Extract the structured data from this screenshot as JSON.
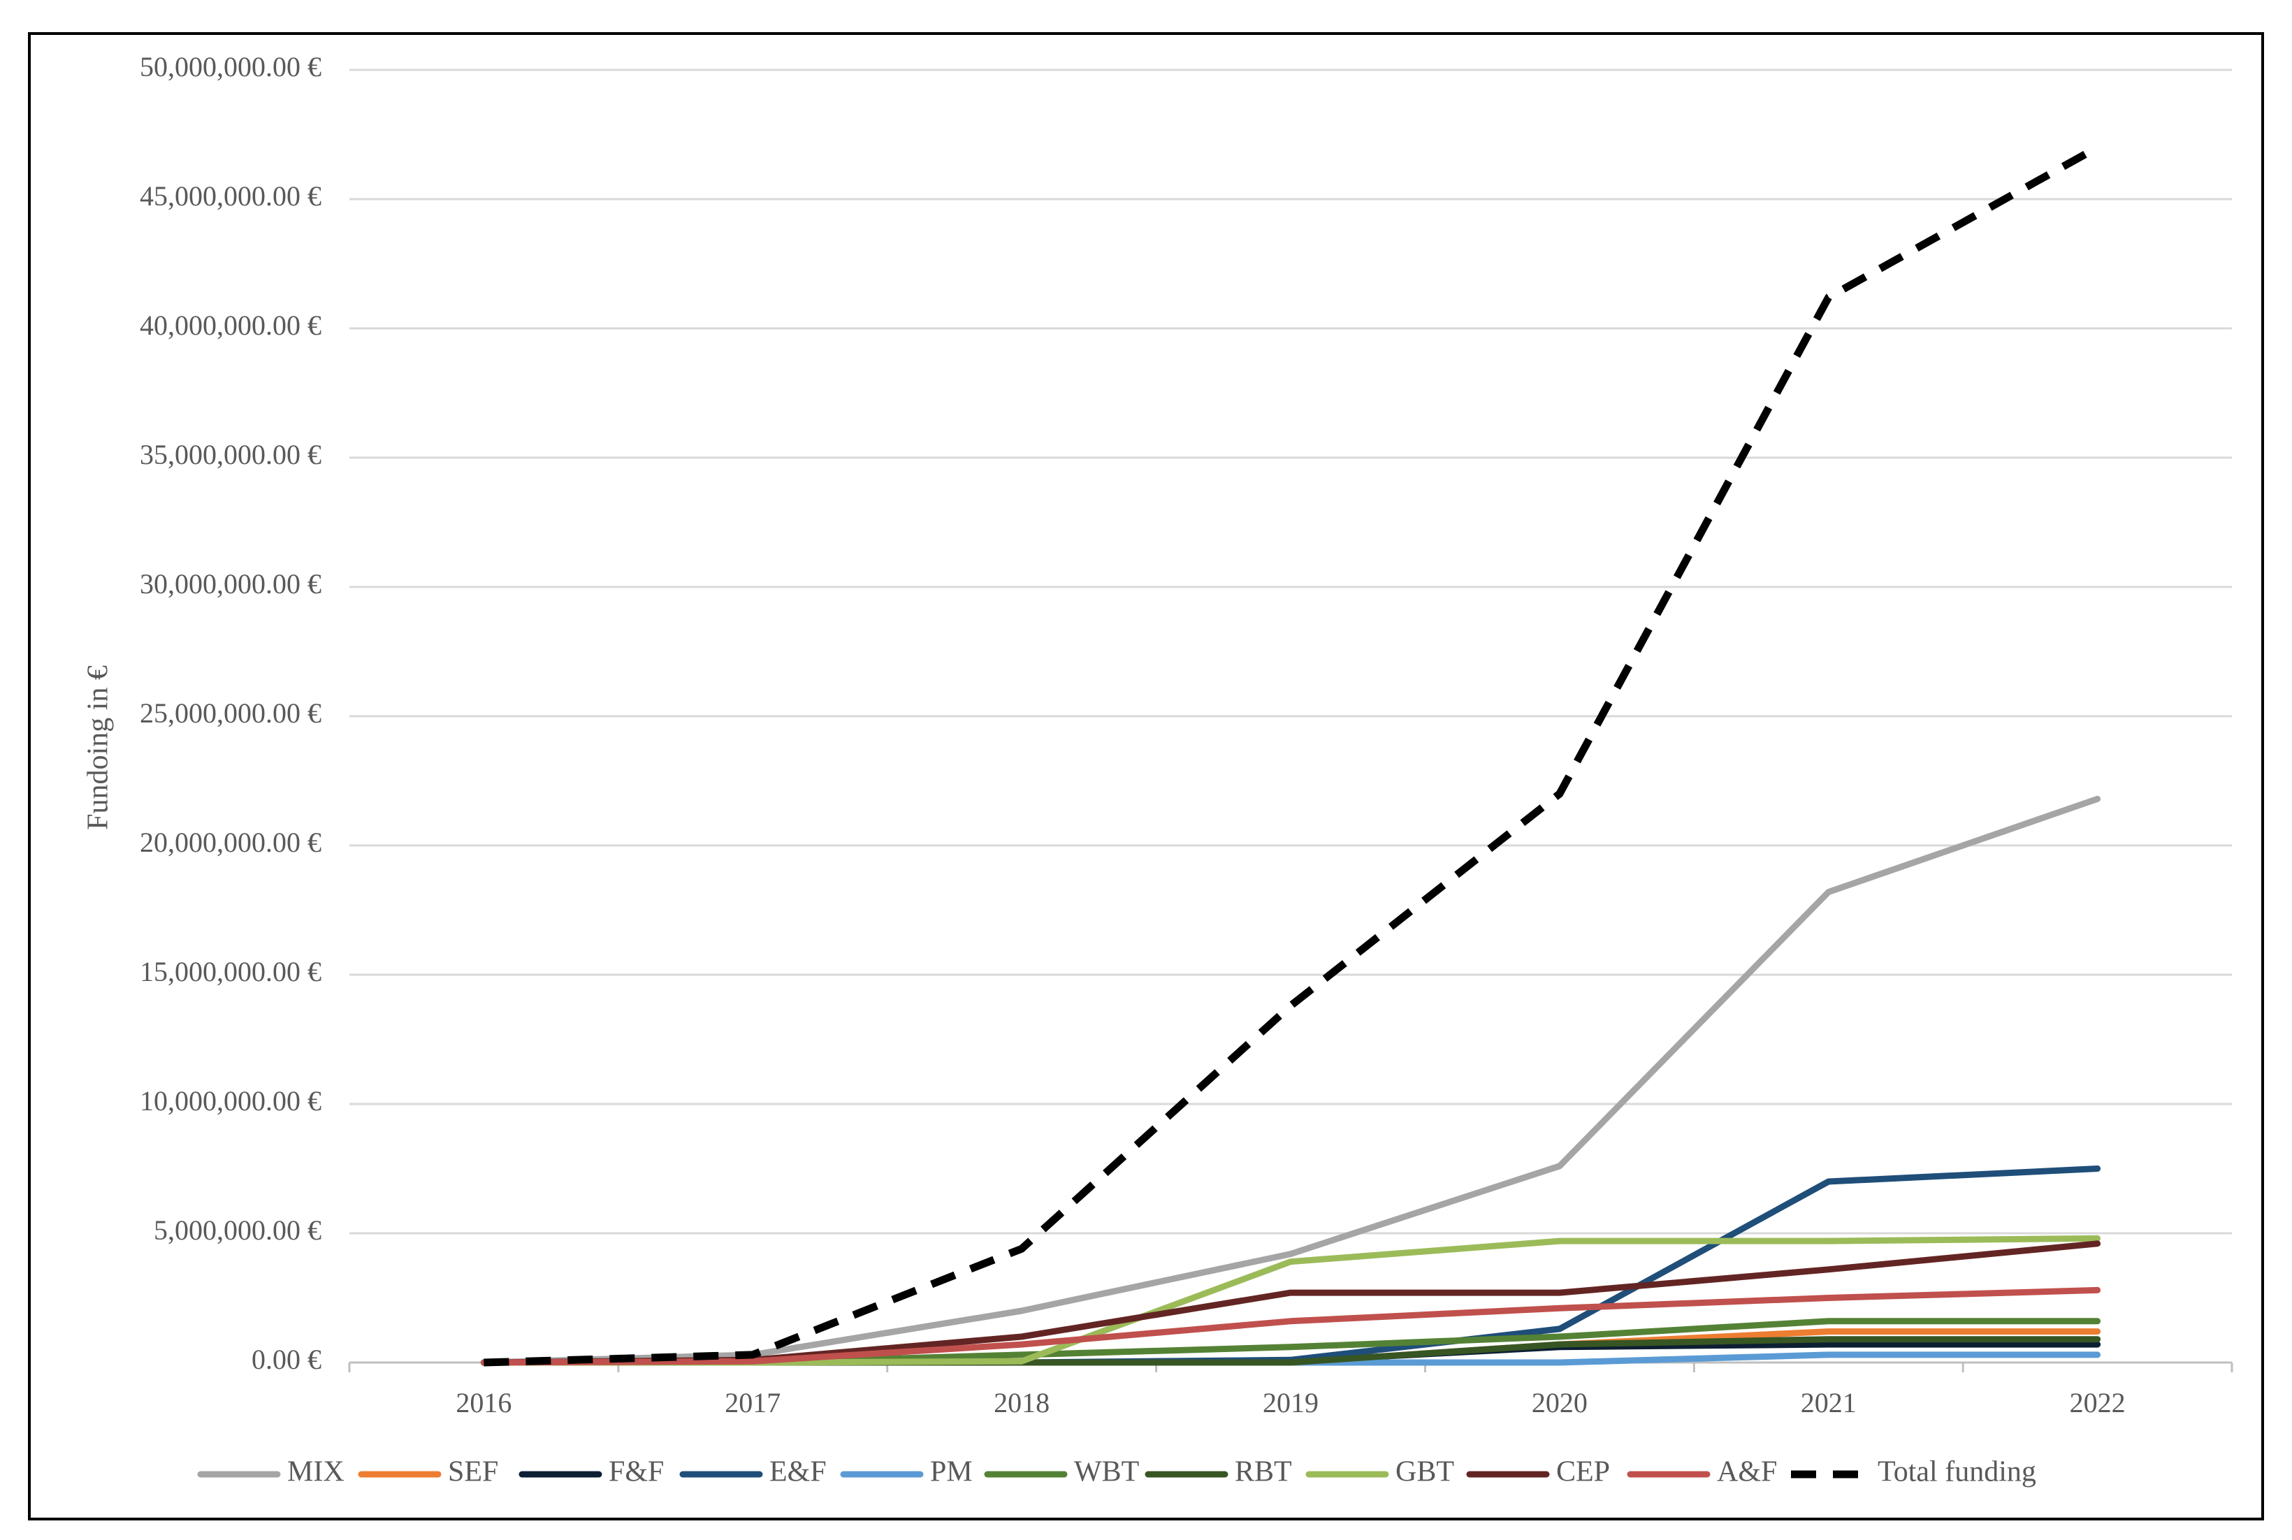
{
  "chart_data": {
    "type": "line",
    "title": "",
    "xlabel": "",
    "ylabel": "Fundoing in €",
    "x": [
      "2016",
      "2017",
      "2018",
      "2019",
      "2020",
      "2021",
      "2022"
    ],
    "ylim": [
      0,
      50000000
    ],
    "y_ticks": [
      {
        "value": 0,
        "label": "0.00 €"
      },
      {
        "value": 5000000,
        "label": "5,000,000.00 €"
      },
      {
        "value": 10000000,
        "label": "10,000,000.00 €"
      },
      {
        "value": 15000000,
        "label": "15,000,000.00 €"
      },
      {
        "value": 20000000,
        "label": "20,000,000.00 €"
      },
      {
        "value": 25000000,
        "label": "25,000,000.00 €"
      },
      {
        "value": 30000000,
        "label": "30,000,000.00 €"
      },
      {
        "value": 35000000,
        "label": "35,000,000.00 €"
      },
      {
        "value": 40000000,
        "label": "40,000,000.00 €"
      },
      {
        "value": 45000000,
        "label": "45,000,000.00 €"
      },
      {
        "value": 50000000,
        "label": "50,000,000.00 €"
      }
    ],
    "grid": "horizontal",
    "legend_position": "bottom",
    "series": [
      {
        "name": "MIX",
        "color": "#a5a5a5",
        "dashed": false,
        "values": [
          0,
          300000,
          2000000,
          4200000,
          7600000,
          18200000,
          21800000
        ]
      },
      {
        "name": "SEF",
        "color": "#ed7d31",
        "dashed": false,
        "values": [
          0,
          0,
          0,
          0,
          700000,
          1200000,
          1200000
        ]
      },
      {
        "name": "F&F",
        "color": "#0d1f33",
        "dashed": false,
        "values": [
          0,
          0,
          0,
          50000,
          600000,
          700000,
          700000
        ]
      },
      {
        "name": "E&F",
        "color": "#1f4e79",
        "dashed": false,
        "values": [
          0,
          0,
          0,
          100000,
          1300000,
          7000000,
          7500000
        ]
      },
      {
        "name": "PM",
        "color": "#5b9bd5",
        "dashed": false,
        "values": [
          0,
          0,
          0,
          0,
          0,
          300000,
          300000
        ]
      },
      {
        "name": "WBT",
        "color": "#548235",
        "dashed": false,
        "values": [
          0,
          0,
          300000,
          600000,
          1000000,
          1600000,
          1600000
        ]
      },
      {
        "name": "RBT",
        "color": "#375623",
        "dashed": false,
        "values": [
          0,
          0,
          0,
          0,
          700000,
          900000,
          900000
        ]
      },
      {
        "name": "GBT",
        "color": "#9bbb59",
        "dashed": false,
        "values": [
          0,
          0,
          50000,
          3900000,
          4700000,
          4700000,
          4800000
        ]
      },
      {
        "name": "CEP",
        "color": "#632523",
        "dashed": false,
        "values": [
          0,
          100000,
          1000000,
          2700000,
          2700000,
          3600000,
          4600000
        ]
      },
      {
        "name": "A&F",
        "color": "#c0504d",
        "dashed": false,
        "values": [
          0,
          50000,
          700000,
          1600000,
          2100000,
          2500000,
          2800000
        ]
      },
      {
        "name": "Total funding",
        "color": "#000000",
        "dashed": true,
        "values": [
          0,
          300000,
          4400000,
          13800000,
          22000000,
          41200000,
          47000000
        ]
      }
    ]
  }
}
